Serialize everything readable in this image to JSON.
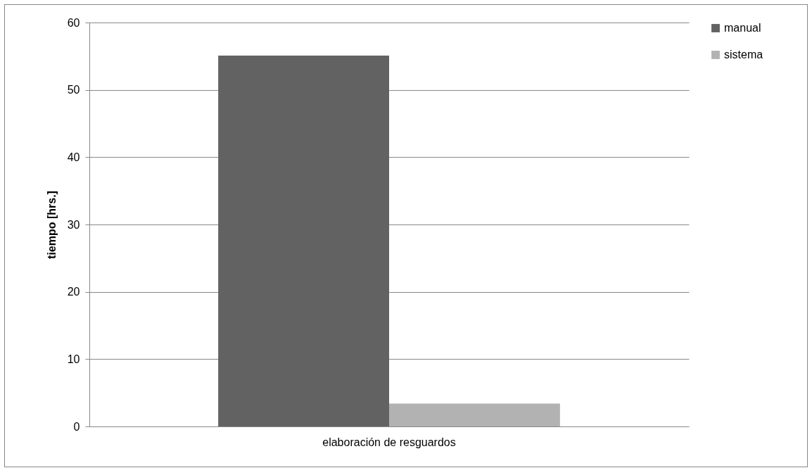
{
  "chart_data": {
    "type": "bar",
    "categories": [
      "elaboración de resguardos"
    ],
    "series": [
      {
        "name": "manual",
        "color": "#626262",
        "values": [
          55.1
        ]
      },
      {
        "name": "sistema",
        "color": "#b2b2b2",
        "values": [
          3.4
        ]
      }
    ],
    "ylabel": "tiempo [hrs.]",
    "ylim": [
      0,
      60
    ],
    "yticks": [
      0,
      10,
      20,
      30,
      40,
      50,
      60
    ],
    "grid": "y",
    "legend": "right"
  }
}
